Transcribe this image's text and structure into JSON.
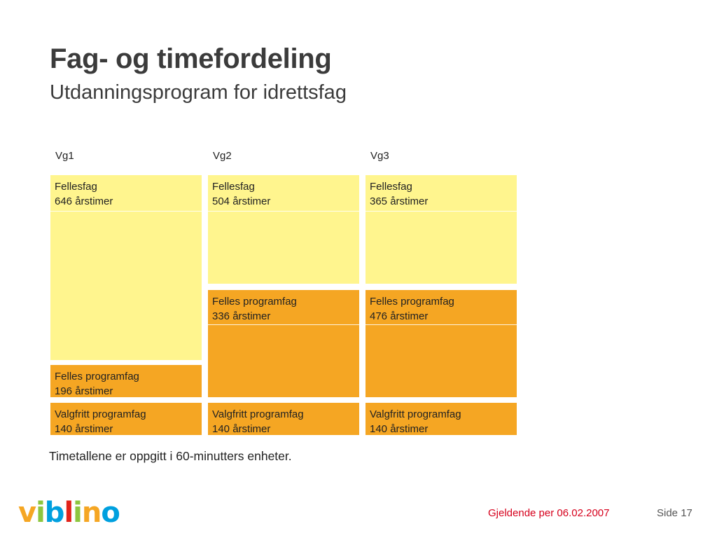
{
  "header": {
    "title": "Fag- og timefordeling",
    "subtitle": "Utdanningsprogram for idrettsfag"
  },
  "columns": [
    {
      "label": "Vg1",
      "blocks": [
        {
          "name": "Fellesfag",
          "hours": "646 årstimer",
          "color": "#fff58e"
        },
        {
          "name": "Felles programfag",
          "hours": "196 årstimer",
          "color": "#f5a623"
        },
        {
          "name": "Valgfritt programfag",
          "hours": "140 årstimer",
          "color": "#f5a623"
        }
      ]
    },
    {
      "label": "Vg2",
      "blocks": [
        {
          "name": "Fellesfag",
          "hours": "504 årstimer",
          "color": "#fff58e"
        },
        {
          "name": "Felles programfag",
          "hours": "336 årstimer",
          "color": "#f5a623"
        },
        {
          "name": "Valgfritt programfag",
          "hours": "140 årstimer",
          "color": "#f5a623"
        }
      ]
    },
    {
      "label": "Vg3",
      "blocks": [
        {
          "name": "Fellesfag",
          "hours": "365 årstimer",
          "color": "#fff58e"
        },
        {
          "name": "Felles programfag",
          "hours": "476 årstimer",
          "color": "#f5a623"
        },
        {
          "name": "Valgfritt programfag",
          "hours": "140 årstimer",
          "color": "#f5a623"
        }
      ]
    }
  ],
  "note": "Timetallene er oppgitt i 60-minutters enheter.",
  "footer": {
    "logo_text": "viblino",
    "logo_colors": [
      "#f5a623",
      "#8dc63f",
      "#00a0df",
      "#e2231a",
      "#8dc63f",
      "#f5a623",
      "#00a0df"
    ],
    "date": "Gjeldende per 06.02.2007",
    "page": "Side 17"
  }
}
